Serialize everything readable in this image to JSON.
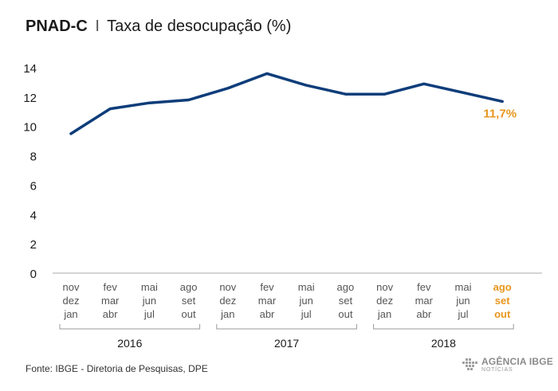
{
  "title": {
    "bold_part": "PNAD-C",
    "separator": "I",
    "rest": "Taxa de desocupação (%)"
  },
  "source": "Fonte: IBGE - Diretoria de Pesquisas, DPE",
  "logo": {
    "main": "AGÊNCIA IBGE",
    "sub": "NOTÍCIAS"
  },
  "colors": {
    "line": "#0e3d7a",
    "highlight": "#e8961e",
    "axis": "#999999",
    "text": "#1a1a1a",
    "tick_text": "#555555"
  },
  "chart_data": {
    "type": "line",
    "title": "PNAD-C I Taxa de desocupação (%)",
    "xlabel": "",
    "ylabel": "",
    "ylim": [
      0,
      14
    ],
    "yticks": [
      0,
      2,
      4,
      6,
      8,
      10,
      12,
      14
    ],
    "grid": false,
    "categories": [
      [
        "nov",
        "dez",
        "jan"
      ],
      [
        "fev",
        "mar",
        "abr"
      ],
      [
        "mai",
        "jun",
        "jul"
      ],
      [
        "ago",
        "set",
        "out"
      ],
      [
        "nov",
        "dez",
        "jan"
      ],
      [
        "fev",
        "mar",
        "abr"
      ],
      [
        "mai",
        "jun",
        "jul"
      ],
      [
        "ago",
        "set",
        "out"
      ],
      [
        "nov",
        "dez",
        "jan"
      ],
      [
        "fev",
        "mar",
        "abr"
      ],
      [
        "mai",
        "jun",
        "jul"
      ],
      [
        "ago",
        "set",
        "out"
      ]
    ],
    "series": [
      {
        "values": [
          9.5,
          11.2,
          11.6,
          11.8,
          12.6,
          13.6,
          12.8,
          12.2,
          12.2,
          12.9,
          12.3,
          11.7
        ]
      }
    ],
    "highlight_index": 11,
    "end_label": "11,7%",
    "year_groups": [
      {
        "label": "2016",
        "start": 0,
        "end": 3
      },
      {
        "label": "2017",
        "start": 4,
        "end": 7
      },
      {
        "label": "2018",
        "start": 8,
        "end": 11
      }
    ]
  }
}
